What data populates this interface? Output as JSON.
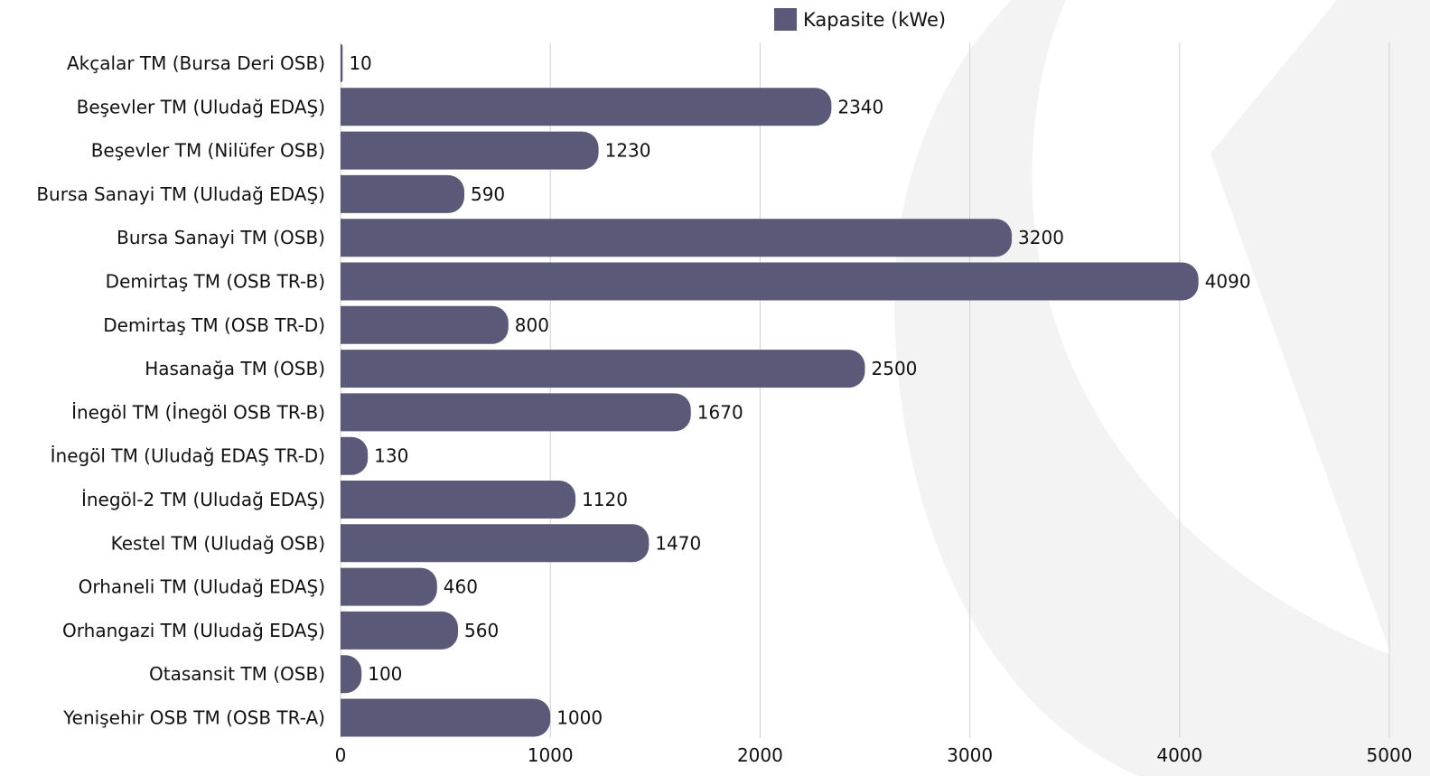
{
  "chart_data": {
    "type": "bar",
    "orientation": "horizontal",
    "legend_position": "top-right",
    "grid": true,
    "title": "",
    "xlabel": "",
    "ylabel": "",
    "xlim": [
      0,
      5000
    ],
    "x_ticks": [
      "0",
      "1000",
      "2000",
      "3000",
      "4000",
      "5000"
    ],
    "categories": [
      "Akçalar TM (Bursa Deri OSB)",
      "Beşevler TM (Uludağ EDAŞ)",
      "Beşevler TM (Nilüfer OSB)",
      "Bursa Sanayi TM (Uludağ EDAŞ)",
      "Bursa Sanayi TM (OSB)",
      "Demirtaş TM (OSB TR-B)",
      "Demirtaş TM (OSB TR-D)",
      "Hasanağa TM (OSB)",
      "İnegöl TM (İnegöl OSB TR-B)",
      "İnegöl TM (Uludağ EDAŞ TR-D)",
      "İnegöl-2 TM (Uludağ EDAŞ)",
      "Kestel TM (Uludağ OSB)",
      "Orhaneli TM (Uludağ EDAŞ)",
      "Orhangazi TM (Uludağ EDAŞ)",
      "Otasansit TM (OSB)",
      "Yenişehir OSB TM (OSB TR-A)"
    ],
    "series": [
      {
        "name": "Kapasite (kWe)",
        "color": "#5a5a78",
        "values": [
          10,
          2340,
          1230,
          590,
          3200,
          4090,
          800,
          2500,
          1670,
          130,
          1120,
          1470,
          460,
          560,
          100,
          1000
        ]
      }
    ]
  }
}
